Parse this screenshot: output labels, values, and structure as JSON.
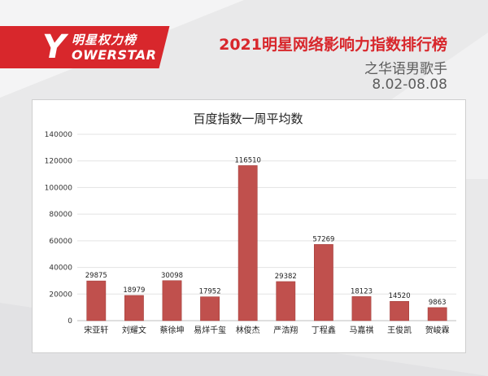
{
  "brand": {
    "logo_letter": "Y",
    "logo_cn": "明星权力榜",
    "logo_en": "OWERSTAR",
    "accent_color": "#d8272c"
  },
  "header": {
    "title": "2021明星网络影响力指数排行榜",
    "subtitle": "之华语男歌手",
    "date_range": "8.02-08.08"
  },
  "chart_data": {
    "type": "bar",
    "title": "百度指数一周平均数",
    "categories": [
      "宋亚轩",
      "刘耀文",
      "蔡徐坤",
      "易烊千玺",
      "林俊杰",
      "严浩翔",
      "丁程鑫",
      "马嘉祺",
      "王俊凯",
      "贺峻霖"
    ],
    "values": [
      29875,
      18979,
      30098,
      17952,
      116510,
      29382,
      57269,
      18123,
      14520,
      9863
    ],
    "ylim": [
      0,
      140000
    ],
    "yticks": [
      0,
      20000,
      40000,
      60000,
      80000,
      100000,
      120000,
      140000
    ],
    "xlabel": "",
    "ylabel": "",
    "grid": true,
    "bar_color": "#c0504d",
    "data_labels": true
  }
}
